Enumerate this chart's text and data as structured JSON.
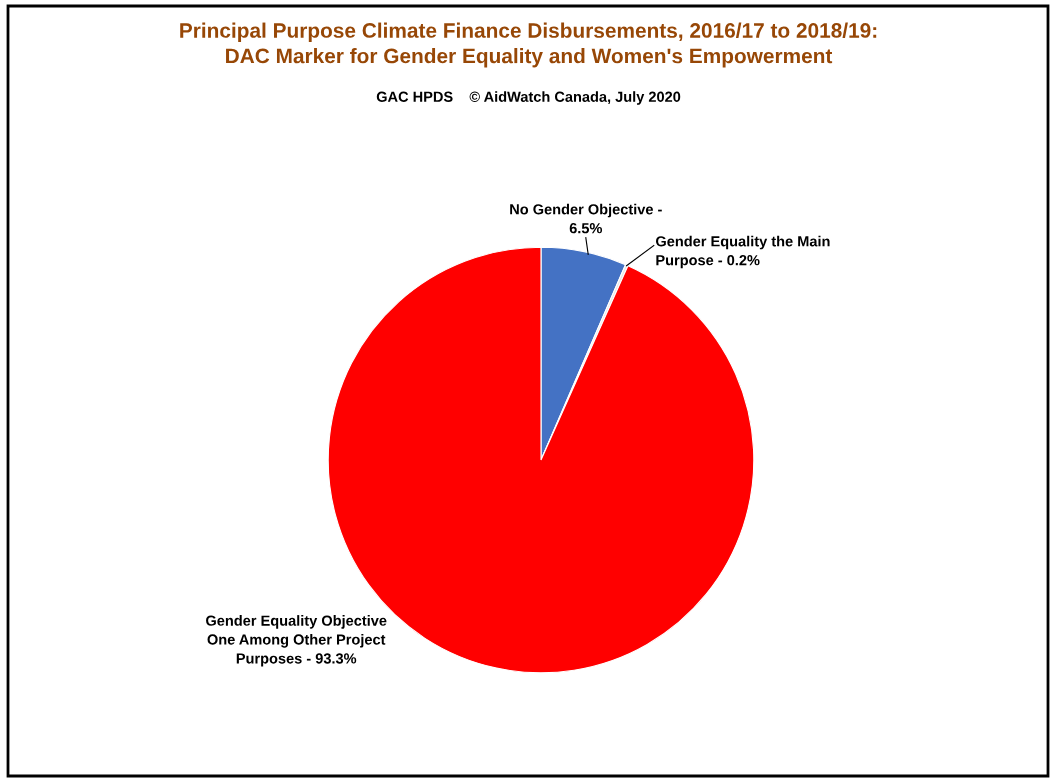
{
  "chart_data": {
    "type": "pie",
    "title": "Principal Purpose Climate Finance Disbursements, 2016/17 to 2018/19:\nDAC Marker for Gender Equality and Women's Empowerment",
    "subtitle": "GAC HPDS    © AidWatch Canada, July 2020",
    "categories": [
      "No Gender Objective -",
      "Gender Equality the Main\nPurpose -",
      "Gender Equality Objective\nOne Among Other Project\nPurposes -"
    ],
    "value_labels": [
      "6.5%",
      "0.2%",
      "93.3%"
    ],
    "values": [
      6.5,
      0.2,
      93.3
    ],
    "colors": [
      "#4472c4",
      "#e7e6e6",
      "#ff0000"
    ],
    "legend": false
  }
}
